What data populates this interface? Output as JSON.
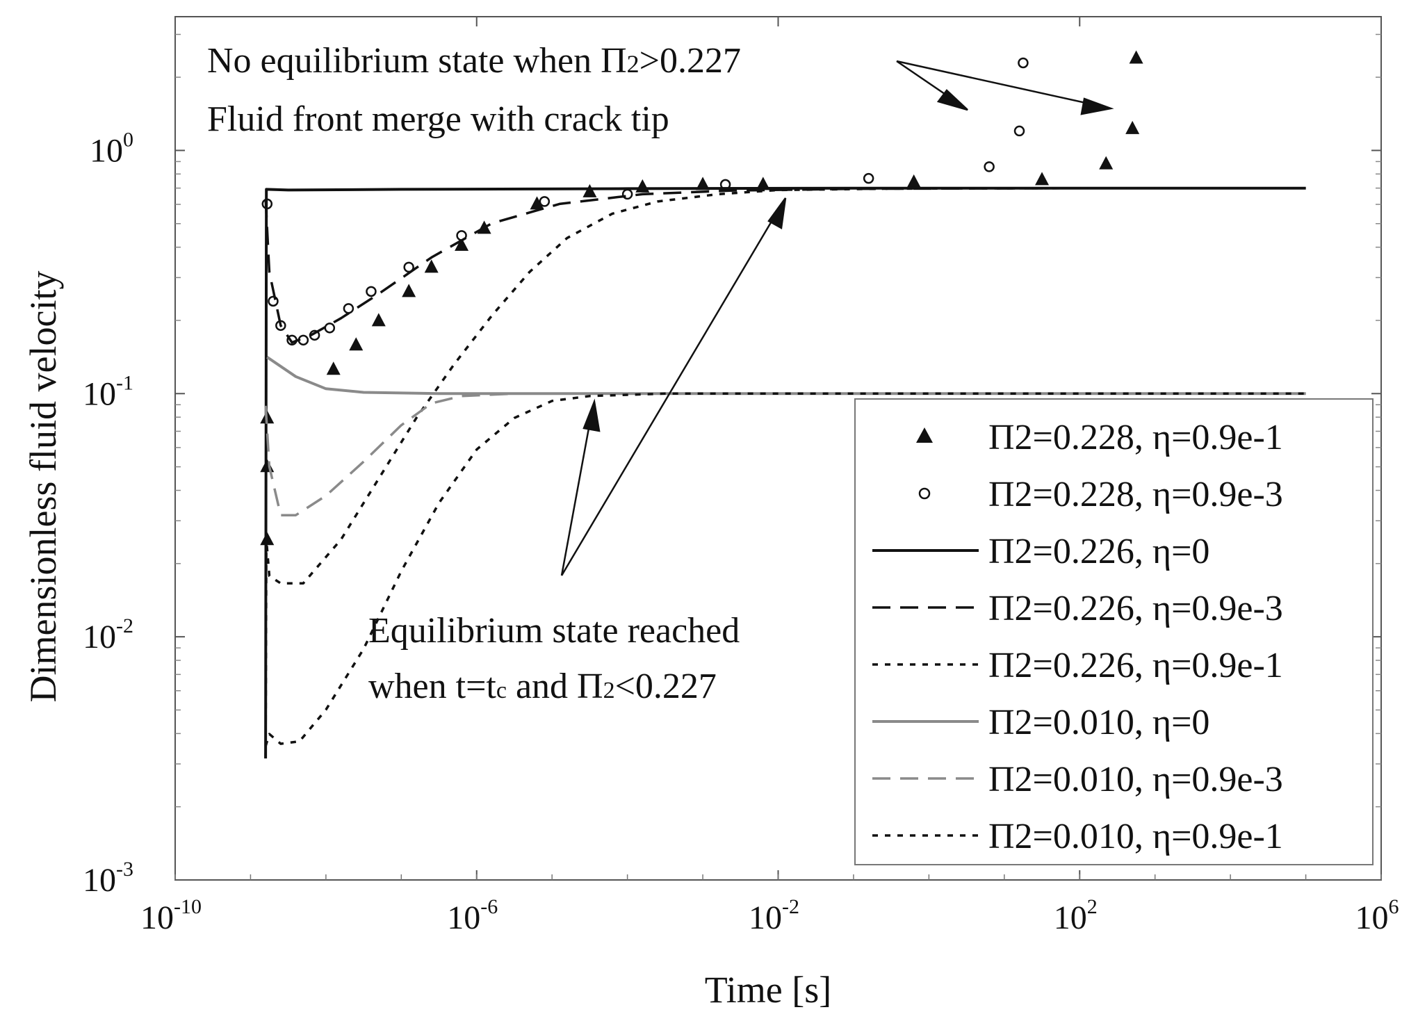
{
  "chart_data": {
    "type": "line",
    "title": "",
    "xlabel": "Time [s]",
    "ylabel": "Dimensionless fluid velocity",
    "xscale": "log",
    "yscale": "log",
    "xlim_exp": [
      -10,
      6
    ],
    "ylim_exp": [
      -3,
      0.55
    ],
    "x_ticks": [
      {
        "base": "10",
        "exp": "-10",
        "value": -10
      },
      {
        "base": "10",
        "exp": "-6",
        "value": -6
      },
      {
        "base": "10",
        "exp": "-2",
        "value": -2
      },
      {
        "base": "10",
        "exp": "2",
        "value": 2
      },
      {
        "base": "10",
        "exp": "6",
        "value": 6
      }
    ],
    "y_ticks": [
      {
        "base": "10",
        "exp": "-3",
        "value": -3
      },
      {
        "base": "10",
        "exp": "-2",
        "value": -2
      },
      {
        "base": "10",
        "exp": "-1",
        "value": -1
      },
      {
        "base": "10",
        "exp": "0",
        "value": 0
      }
    ],
    "legend_position": "bottom-right",
    "series": [
      {
        "name": "Π2=0.228, η=0.9e-1",
        "style": "triangle",
        "color": "#111111",
        "points": [
          [
            -8.78,
            -1.1
          ],
          [
            -8.78,
            -1.3
          ],
          [
            -8.78,
            -1.6
          ],
          [
            -7.9,
            -0.9
          ],
          [
            -7.6,
            -0.8
          ],
          [
            -7.3,
            -0.7
          ],
          [
            -6.9,
            -0.58
          ],
          [
            -6.6,
            -0.48
          ],
          [
            -6.2,
            -0.39
          ],
          [
            -5.9,
            -0.32
          ],
          [
            -5.2,
            -0.22
          ],
          [
            -4.5,
            -0.17
          ],
          [
            -3.8,
            -0.15
          ],
          [
            -3.0,
            -0.14
          ],
          [
            -2.2,
            -0.14
          ],
          [
            -0.2,
            -0.13
          ],
          [
            1.5,
            -0.12
          ],
          [
            2.35,
            -0.055
          ],
          [
            2.7,
            0.09
          ],
          [
            2.75,
            0.38
          ]
        ]
      },
      {
        "name": "Π2=0.228, η=0.9e-3",
        "style": "circle",
        "color": "#111111",
        "points": [
          [
            -8.78,
            -0.22
          ],
          [
            -8.7,
            -0.62
          ],
          [
            -8.6,
            -0.72
          ],
          [
            -8.45,
            -0.78
          ],
          [
            -8.3,
            -0.78
          ],
          [
            -8.15,
            -0.76
          ],
          [
            -7.95,
            -0.73
          ],
          [
            -7.7,
            -0.65
          ],
          [
            -7.4,
            -0.58
          ],
          [
            -6.9,
            -0.48
          ],
          [
            -6.2,
            -0.35
          ],
          [
            -5.1,
            -0.21
          ],
          [
            -4.0,
            -0.18
          ],
          [
            -2.7,
            -0.14
          ],
          [
            -0.8,
            -0.115
          ],
          [
            0.8,
            -0.067
          ],
          [
            1.2,
            0.08
          ],
          [
            1.25,
            0.36
          ]
        ]
      },
      {
        "name": "Π2=0.226, η=0",
        "style": "solid",
        "color": "#111111",
        "points": [
          [
            -8.8,
            -2.5
          ],
          [
            -8.79,
            -0.16
          ],
          [
            -8.5,
            -0.163
          ],
          [
            -7.0,
            -0.16
          ],
          [
            -4.0,
            -0.157
          ],
          [
            -1.0,
            -0.155
          ],
          [
            3.0,
            -0.155
          ],
          [
            5.0,
            -0.155
          ]
        ]
      },
      {
        "name": "Π2=0.226, η=0.9e-3",
        "style": "dash",
        "color": "#111111",
        "points": [
          [
            -8.8,
            -0.2
          ],
          [
            -8.75,
            -0.5
          ],
          [
            -8.6,
            -0.72
          ],
          [
            -8.45,
            -0.79
          ],
          [
            -8.2,
            -0.76
          ],
          [
            -7.8,
            -0.69
          ],
          [
            -7.3,
            -0.59
          ],
          [
            -6.6,
            -0.44
          ],
          [
            -5.8,
            -0.3
          ],
          [
            -4.9,
            -0.22
          ],
          [
            -3.8,
            -0.18
          ],
          [
            -2.6,
            -0.165
          ],
          [
            -1.0,
            -0.158
          ],
          [
            2.0,
            -0.155
          ],
          [
            5.0,
            -0.155
          ]
        ]
      },
      {
        "name": "Π2=0.226, η=0.9e-1",
        "style": "dot",
        "color": "#111111",
        "points": [
          [
            -8.8,
            -2.5
          ],
          [
            -8.79,
            -1.6
          ],
          [
            -8.75,
            -1.75
          ],
          [
            -8.6,
            -1.78
          ],
          [
            -8.3,
            -1.78
          ],
          [
            -7.8,
            -1.6
          ],
          [
            -7.3,
            -1.35
          ],
          [
            -6.8,
            -1.1
          ],
          [
            -6.3,
            -0.88
          ],
          [
            -5.8,
            -0.68
          ],
          [
            -5.3,
            -0.5
          ],
          [
            -4.8,
            -0.36
          ],
          [
            -4.2,
            -0.26
          ],
          [
            -3.6,
            -0.21
          ],
          [
            -2.8,
            -0.18
          ],
          [
            -2.0,
            -0.163
          ],
          [
            -0.5,
            -0.157
          ],
          [
            2.0,
            -0.155
          ],
          [
            5.0,
            -0.155
          ]
        ]
      },
      {
        "name": "Π2=0.010, η=0",
        "style": "solid",
        "color": "#8a8a8a",
        "points": [
          [
            -8.78,
            -0.85
          ],
          [
            -8.4,
            -0.93
          ],
          [
            -8.0,
            -0.98
          ],
          [
            -7.5,
            -0.995
          ],
          [
            -6.5,
            -1.0
          ],
          [
            -2.0,
            -1.0
          ],
          [
            5.0,
            -1.0
          ]
        ]
      },
      {
        "name": "Π2=0.010, η=0.9e-3",
        "style": "dash",
        "color": "#8a8a8a",
        "points": [
          [
            -8.8,
            -1.05
          ],
          [
            -8.75,
            -1.3
          ],
          [
            -8.6,
            -1.5
          ],
          [
            -8.4,
            -1.5
          ],
          [
            -8.0,
            -1.42
          ],
          [
            -7.5,
            -1.28
          ],
          [
            -7.0,
            -1.13
          ],
          [
            -6.6,
            -1.04
          ],
          [
            -6.2,
            -1.01
          ],
          [
            -5.5,
            -1.0
          ],
          [
            -3.0,
            -1.0
          ],
          [
            5.0,
            -1.0
          ]
        ]
      },
      {
        "name": "Π2=0.010, η=0.9e-1",
        "style": "dot",
        "color": "#111111",
        "points": [
          [
            -8.8,
            -2.45
          ],
          [
            -8.75,
            -2.4
          ],
          [
            -8.6,
            -2.44
          ],
          [
            -8.35,
            -2.43
          ],
          [
            -8.0,
            -2.3
          ],
          [
            -7.5,
            -2.05
          ],
          [
            -7.0,
            -1.73
          ],
          [
            -6.5,
            -1.45
          ],
          [
            -6.0,
            -1.23
          ],
          [
            -5.5,
            -1.1
          ],
          [
            -5.0,
            -1.03
          ],
          [
            -4.5,
            -1.01
          ],
          [
            -3.5,
            -1.0
          ],
          [
            5.0,
            -1.0
          ]
        ]
      }
    ],
    "annotations": [
      {
        "line1_pre": "No equilibrium state when Π",
        "line1_sub": "2",
        "line1_post": ">0.227",
        "line2": "Fluid front merge with crack tip"
      },
      {
        "line1": "Equilibrium state reached",
        "line2_pre": "when t=t",
        "line2_sub": "c",
        "line2_mid": " and Π",
        "line2_sub2": "2",
        "line2_post": "<0.227"
      }
    ]
  }
}
